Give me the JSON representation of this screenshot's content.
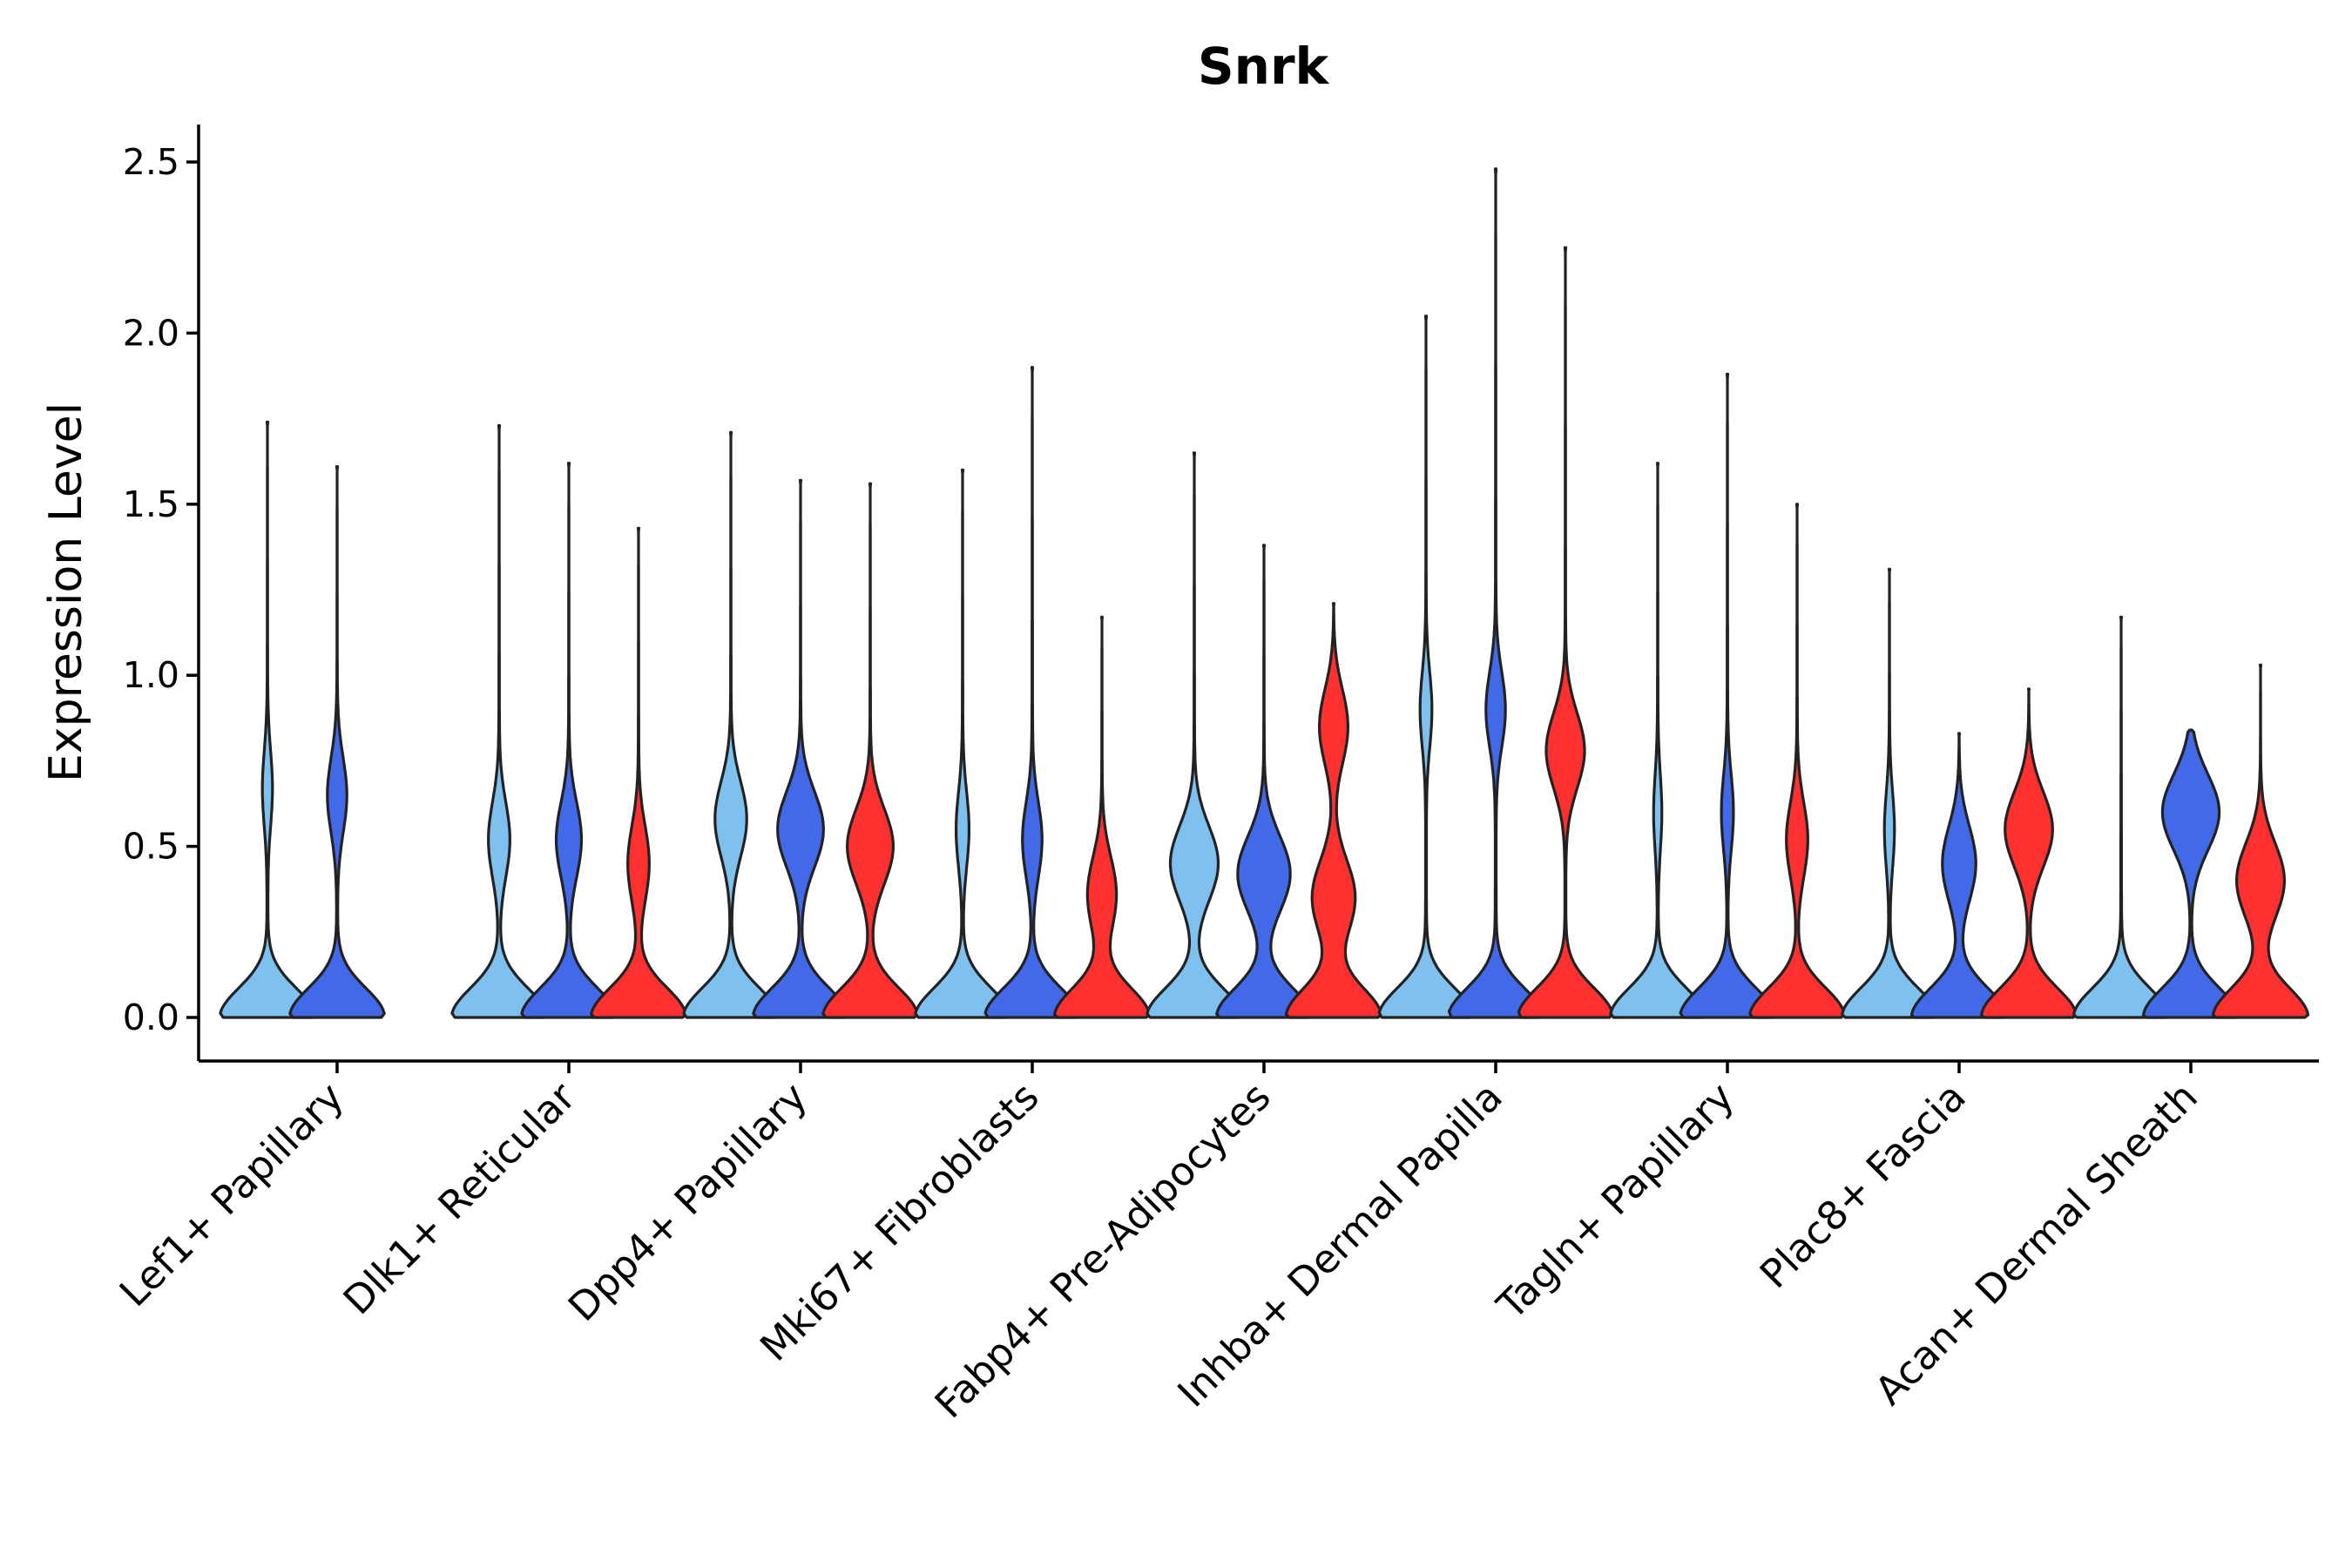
{
  "chart_data": {
    "type": "violin",
    "title": "Snrk",
    "xlabel": "",
    "ylabel": "Expression Level",
    "ylim": [
      -0.12,
      2.62
    ],
    "yticks": [
      0.0,
      0.5,
      1.0,
      1.5,
      2.0,
      2.5
    ],
    "ytick_labels": [
      "0.0",
      "0.5",
      "1.0",
      "1.5",
      "2.0",
      "2.5"
    ],
    "categories": [
      "Lef1+ Papillary",
      "Dlk1+ Reticular",
      "Dpp4+ Papillary",
      "Mki67+ Fibroblasts",
      "Fabp4+ Pre-Adipocytes",
      "Inhba+ Dermal Papilla",
      "Tagln+ Papillary",
      "Plac8+ Fascia",
      "Acan+ Dermal Sheath"
    ],
    "series_colors": [
      "#7fc1ee",
      "#4169e8",
      "#ff3030"
    ],
    "violins": [
      {
        "category": 0,
        "series": 0,
        "max": 1.74,
        "zero_halfwidth": 0.45,
        "modes": [
          [
            0.67,
            0.1
          ]
        ]
      },
      {
        "category": 0,
        "series": 1,
        "max": 1.61,
        "zero_halfwidth": 0.45,
        "modes": [
          [
            0.65,
            0.2
          ]
        ]
      },
      {
        "category": 1,
        "series": 0,
        "max": 1.73,
        "zero_halfwidth": 0.45,
        "modes": [
          [
            0.52,
            0.22
          ]
        ]
      },
      {
        "category": 1,
        "series": 1,
        "max": 1.62,
        "zero_halfwidth": 0.45,
        "modes": [
          [
            0.52,
            0.26
          ]
        ]
      },
      {
        "category": 1,
        "series": 2,
        "max": 1.43,
        "zero_halfwidth": 0.45,
        "modes": [
          [
            0.45,
            0.22
          ]
        ]
      },
      {
        "category": 2,
        "series": 0,
        "max": 1.71,
        "zero_halfwidth": 0.45,
        "modes": [
          [
            0.58,
            0.33
          ]
        ]
      },
      {
        "category": 2,
        "series": 1,
        "max": 1.57,
        "zero_halfwidth": 0.45,
        "modes": [
          [
            0.55,
            0.48
          ]
        ]
      },
      {
        "category": 2,
        "series": 2,
        "max": 1.56,
        "zero_halfwidth": 0.45,
        "modes": [
          [
            0.5,
            0.48
          ]
        ]
      },
      {
        "category": 3,
        "series": 0,
        "max": 1.6,
        "zero_halfwidth": 0.45,
        "modes": [
          [
            0.55,
            0.13
          ]
        ]
      },
      {
        "category": 3,
        "series": 1,
        "max": 1.9,
        "zero_halfwidth": 0.45,
        "modes": [
          [
            0.52,
            0.2
          ]
        ]
      },
      {
        "category": 3,
        "series": 2,
        "max": 1.17,
        "zero_halfwidth": 0.45,
        "modes": [
          [
            0.36,
            0.3
          ]
        ]
      },
      {
        "category": 4,
        "series": 0,
        "max": 1.65,
        "zero_halfwidth": 0.45,
        "modes": [
          [
            0.45,
            0.5
          ]
        ]
      },
      {
        "category": 4,
        "series": 1,
        "max": 1.38,
        "zero_halfwidth": 0.45,
        "modes": [
          [
            0.42,
            0.55
          ]
        ]
      },
      {
        "category": 4,
        "series": 2,
        "max": 1.21,
        "zero_halfwidth": 0.45,
        "modes": [
          [
            0.35,
            0.45
          ],
          [
            0.85,
            0.3
          ]
        ]
      },
      {
        "category": 5,
        "series": 0,
        "max": 2.05,
        "zero_halfwidth": 0.45,
        "modes": [
          [
            0.9,
            0.12
          ]
        ]
      },
      {
        "category": 5,
        "series": 1,
        "max": 2.48,
        "zero_halfwidth": 0.45,
        "modes": [
          [
            0.9,
            0.2
          ]
        ]
      },
      {
        "category": 5,
        "series": 2,
        "max": 2.25,
        "zero_halfwidth": 0.45,
        "modes": [
          [
            0.78,
            0.4
          ]
        ]
      },
      {
        "category": 6,
        "series": 0,
        "max": 1.62,
        "zero_halfwidth": 0.45,
        "modes": [
          [
            0.6,
            0.08
          ]
        ]
      },
      {
        "category": 6,
        "series": 1,
        "max": 1.88,
        "zero_halfwidth": 0.45,
        "modes": [
          [
            0.6,
            0.12
          ]
        ]
      },
      {
        "category": 6,
        "series": 2,
        "max": 1.5,
        "zero_halfwidth": 0.45,
        "modes": [
          [
            0.52,
            0.22
          ]
        ]
      },
      {
        "category": 7,
        "series": 0,
        "max": 1.31,
        "zero_halfwidth": 0.45,
        "modes": [
          [
            0.55,
            0.1
          ]
        ]
      },
      {
        "category": 7,
        "series": 1,
        "max": 0.83,
        "zero_halfwidth": 0.45,
        "modes": [
          [
            0.45,
            0.35
          ]
        ]
      },
      {
        "category": 7,
        "series": 2,
        "max": 0.96,
        "zero_halfwidth": 0.45,
        "modes": [
          [
            0.55,
            0.5
          ]
        ]
      },
      {
        "category": 8,
        "series": 0,
        "max": 1.17,
        "zero_halfwidth": 0.45,
        "modes": []
      },
      {
        "category": 8,
        "series": 1,
        "max": 0.84,
        "zero_halfwidth": 0.45,
        "modes": [
          [
            0.6,
            0.6
          ]
        ]
      },
      {
        "category": 8,
        "series": 2,
        "max": 1.03,
        "zero_halfwidth": 0.45,
        "modes": [
          [
            0.4,
            0.5
          ]
        ]
      }
    ]
  }
}
